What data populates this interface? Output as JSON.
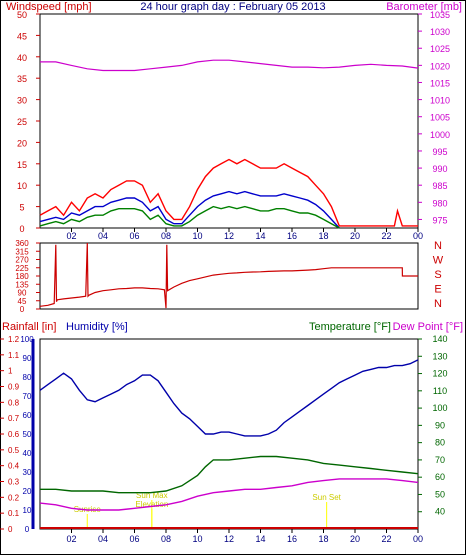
{
  "page": {
    "title": "24 hour graph day : February 05 2013",
    "border_color": "#000000"
  },
  "chart_data": [
    {
      "id": "wind-baro",
      "type": "line",
      "left_label": "Windspeed [mph]",
      "right_label": "Barometer [mb]",
      "x_ticks": [
        "02",
        "04",
        "06",
        "08",
        "10",
        "12",
        "14",
        "16",
        "18",
        "20",
        "22",
        "00"
      ],
      "x_range": [
        0,
        24
      ],
      "ylim_left": [
        0,
        50
      ],
      "yticks_left": [
        "0",
        "5",
        "10",
        "15",
        "20",
        "25",
        "30",
        "35",
        "40",
        "45",
        "50"
      ],
      "ylim_right": [
        972.5,
        1035
      ],
      "yticks_right": [
        "975",
        "980",
        "985",
        "990",
        "995",
        "1000",
        "1005",
        "1010",
        "1015",
        "1020",
        "1025",
        "1030",
        "1035"
      ],
      "colors": {
        "gust": "#ff0000",
        "avg": "#0000cc",
        "speed": "#008000",
        "baro": "#cc00cc",
        "left_axis": "#cc0000",
        "right_axis": "#cc00cc"
      },
      "series": [
        {
          "key": "gust",
          "axis": "left",
          "x": [
            0,
            0.5,
            1,
            1.5,
            2,
            2.5,
            3,
            3.5,
            4,
            4.5,
            5,
            5.5,
            6,
            6.5,
            7,
            7.5,
            8,
            8.5,
            9,
            9.5,
            10,
            10.5,
            11,
            11.5,
            12,
            12.5,
            13,
            13.5,
            14,
            14.5,
            15,
            15.5,
            16,
            16.5,
            17,
            17.5,
            18,
            18.5,
            19,
            19.5,
            20,
            21,
            22,
            22.5,
            22.7,
            23,
            24
          ],
          "y": [
            3,
            4,
            5,
            3,
            6,
            4,
            7,
            8,
            7,
            9,
            10,
            11,
            11,
            10,
            6,
            8,
            4,
            2,
            2,
            5,
            9,
            12,
            14,
            15,
            16,
            15,
            16,
            15,
            14,
            14,
            14,
            15,
            14,
            13,
            12,
            10,
            8,
            5,
            0.5,
            0.5,
            0.5,
            0.5,
            0.5,
            0.5,
            4,
            0.5,
            0.5
          ]
        },
        {
          "key": "avg",
          "axis": "left",
          "x": [
            0,
            0.5,
            1,
            1.5,
            2,
            2.5,
            3,
            3.5,
            4,
            4.5,
            5,
            5.5,
            6,
            6.5,
            7,
            7.5,
            8,
            8.5,
            9,
            9.5,
            10,
            10.5,
            11,
            11.5,
            12,
            12.5,
            13,
            13.5,
            14,
            14.5,
            15,
            15.5,
            16,
            16.5,
            17,
            17.5,
            18,
            18.5,
            19
          ],
          "y": [
            1.5,
            2,
            2.5,
            2,
            3.5,
            3,
            4,
            5,
            5,
            6,
            6.5,
            7,
            7,
            6,
            4,
            5,
            2,
            1,
            1,
            3,
            5,
            6.5,
            7.5,
            8,
            8.5,
            8,
            8.5,
            8,
            7.5,
            7.5,
            7.5,
            8,
            7.5,
            7,
            6.5,
            5.5,
            4,
            2,
            0
          ]
        },
        {
          "key": "speed",
          "axis": "left",
          "x": [
            0,
            0.5,
            1,
            1.5,
            2,
            2.5,
            3,
            3.5,
            4,
            4.5,
            5,
            5.5,
            6,
            6.5,
            7,
            7.5,
            8,
            8.5,
            9,
            9.5,
            10,
            10.5,
            11,
            11.5,
            12,
            12.5,
            13,
            13.5,
            14,
            14.5,
            15,
            15.5,
            16,
            16.5,
            17,
            17.5,
            18,
            18.5,
            19
          ],
          "y": [
            0.5,
            1,
            1.5,
            1,
            2,
            1.5,
            2.5,
            3,
            3,
            4,
            4.5,
            4.5,
            4.5,
            4,
            2,
            3,
            1,
            0.5,
            0.5,
            1.5,
            3,
            4,
            5,
            4.5,
            5,
            4.5,
            5,
            4.5,
            4,
            4,
            4.5,
            4.5,
            4,
            3.5,
            3.5,
            3,
            2,
            1,
            0
          ]
        },
        {
          "key": "baro",
          "axis": "right",
          "x": [
            0,
            1,
            2,
            3,
            4,
            5,
            6,
            7,
            8,
            9,
            10,
            11,
            12,
            13,
            14,
            15,
            16,
            17,
            18,
            19,
            20,
            21,
            22,
            23,
            24
          ],
          "y": [
            1021,
            1021,
            1020,
            1019,
            1018.5,
            1018.5,
            1018.5,
            1019,
            1019.5,
            1020,
            1021,
            1021.5,
            1021.5,
            1021,
            1020.5,
            1020,
            1019.5,
            1019.5,
            1019.3,
            1019.5,
            1020,
            1020.3,
            1020,
            1019.8,
            1019.2
          ]
        }
      ]
    },
    {
      "id": "wind-dir",
      "type": "line",
      "x_ticks": [
        "02",
        "04",
        "06",
        "08",
        "10",
        "12",
        "14",
        "16",
        "18",
        "20",
        "22",
        "00"
      ],
      "x_range": [
        0,
        24
      ],
      "ylim": [
        0,
        360
      ],
      "yticks": [
        "0",
        "45",
        "90",
        "135",
        "180",
        "225",
        "270",
        "315",
        "360"
      ],
      "compass": [
        "N",
        "W",
        "S",
        "E",
        "N"
      ],
      "colors": {
        "dir": "#cc0000",
        "axis": "#cc0000"
      },
      "series": [
        {
          "key": "dir",
          "x": [
            0,
            0.5,
            0.9,
            1,
            1.05,
            1.1,
            1.5,
            2,
            2.5,
            2.9,
            3,
            3.05,
            3.1,
            3.5,
            4,
            4.5,
            5,
            5.5,
            6,
            6.5,
            7,
            7.5,
            7.9,
            8,
            8.05,
            8.1,
            8.5,
            9,
            9.5,
            10,
            10.5,
            11,
            11.5,
            12,
            12.5,
            13,
            13.5,
            14,
            14.5,
            15,
            15.5,
            16,
            16.5,
            17,
            17.5,
            18,
            18.5,
            19,
            20,
            21,
            22,
            23,
            23.01,
            24
          ],
          "y": [
            15,
            20,
            30,
            350,
            40,
            50,
            55,
            60,
            65,
            70,
            365,
            70,
            75,
            90,
            100,
            105,
            110,
            112,
            115,
            115,
            112,
            110,
            105,
            5,
            350,
            100,
            120,
            140,
            155,
            165,
            175,
            185,
            190,
            195,
            197,
            200,
            202,
            203,
            205,
            207,
            208,
            208,
            210,
            212,
            215,
            220,
            225,
            225,
            225,
            225,
            225,
            225,
            180,
            180
          ]
        }
      ]
    },
    {
      "id": "rain-hum-temp",
      "type": "line",
      "label_rain": "Rainfall [in]",
      "label_hum": "Humidity [%]",
      "label_temp": "Temperature [°F]",
      "label_dew": "Dew Point [°F]",
      "x_ticks": [
        "02",
        "04",
        "06",
        "08",
        "10",
        "12",
        "14",
        "16",
        "18",
        "20",
        "22",
        "00"
      ],
      "x_range": [
        0,
        24
      ],
      "ylim_rain": [
        0,
        1.2
      ],
      "yticks_rain": [
        "0",
        "0.1",
        "0.2",
        "0.3",
        "0.4",
        "0.5",
        "0.6",
        "0.7",
        "0.8",
        "0.9",
        "1",
        "1.1",
        "1.2"
      ],
      "ylim_hum": [
        0,
        100
      ],
      "yticks_hum": [
        "0",
        "10",
        "20",
        "30",
        "40",
        "50",
        "60",
        "70",
        "80",
        "90",
        "100"
      ],
      "ylim_temp": [
        30,
        140
      ],
      "yticks_temp": [
        "40",
        "50",
        "60",
        "70",
        "80",
        "90",
        "100",
        "110",
        "120",
        "130",
        "140"
      ],
      "annotations": [
        {
          "text": "Sunrise",
          "x": 3.0
        },
        {
          "text": "Sun Max",
          "x": 7.1
        },
        {
          "text": "Elevation",
          "x": 7.1
        },
        {
          "text": "Sun Set",
          "x": 18.2
        }
      ],
      "colors": {
        "hum": "#0000aa",
        "temp": "#006600",
        "dew": "#cc00cc",
        "rain": "#cc0000",
        "annot": "#ffff00",
        "rain_axis": "#cc0000",
        "hum_axis": "#0000aa",
        "temp_axis": "#006600"
      },
      "series": [
        {
          "key": "hum",
          "axis": "hum",
          "x": [
            0,
            0.5,
            1,
            1.5,
            2,
            2.5,
            3,
            3.5,
            4,
            4.5,
            5,
            5.5,
            6,
            6.5,
            7,
            7.5,
            8,
            8.5,
            9,
            9.5,
            10,
            10.5,
            11,
            11.5,
            12,
            12.5,
            13,
            13.5,
            14,
            14.5,
            15,
            15.5,
            16,
            16.5,
            17,
            17.5,
            18,
            18.5,
            19,
            19.5,
            20,
            20.5,
            21,
            21.5,
            22,
            22.5,
            23,
            23.5,
            24
          ],
          "y": [
            73,
            76,
            79,
            82,
            79,
            73,
            68,
            67,
            69,
            71,
            73,
            76,
            78,
            81,
            81,
            78,
            72,
            66,
            61,
            58,
            54,
            50,
            50,
            51,
            51,
            50,
            49,
            49,
            49,
            50,
            52,
            56,
            59,
            62,
            65,
            68,
            71,
            74,
            77,
            79,
            81,
            83,
            84,
            85,
            85,
            86,
            86,
            87,
            89
          ]
        },
        {
          "key": "temp",
          "axis": "temp",
          "x": [
            0,
            1,
            2,
            3,
            4,
            5,
            6,
            7,
            8,
            9,
            10,
            10.5,
            11,
            11.5,
            12,
            13,
            14,
            15,
            16,
            17,
            18,
            19,
            20,
            21,
            22,
            23,
            24
          ],
          "y": [
            53,
            53,
            52,
            52,
            52,
            51,
            51,
            51,
            52,
            55,
            61,
            66,
            70,
            70,
            70,
            71,
            72,
            72,
            71,
            70,
            68,
            67,
            66,
            65,
            64,
            63,
            62
          ]
        },
        {
          "key": "dew",
          "axis": "temp",
          "x": [
            0,
            1,
            2,
            3,
            4,
            5,
            6,
            7,
            8,
            9,
            10,
            11,
            12,
            13,
            14,
            15,
            16,
            17,
            18,
            19,
            20,
            21,
            22,
            23,
            24
          ],
          "y": [
            45,
            44,
            42,
            41,
            41,
            41,
            42,
            43,
            44,
            46,
            49,
            51,
            52,
            53,
            53,
            54,
            55,
            57,
            58,
            59,
            59,
            59,
            59,
            58,
            57
          ]
        }
      ]
    }
  ]
}
